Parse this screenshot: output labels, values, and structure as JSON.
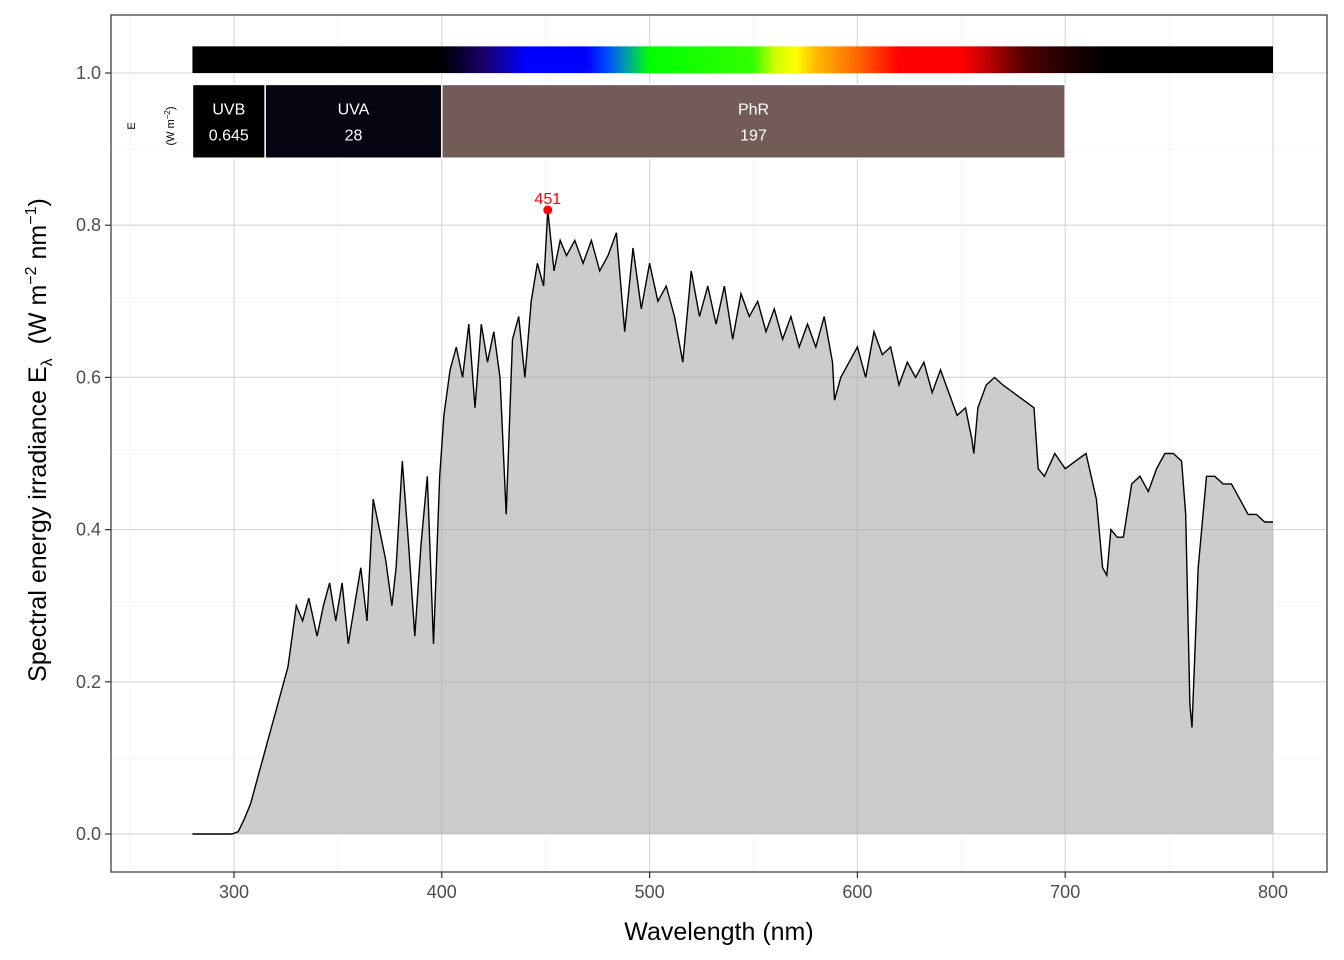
{
  "chart_data": {
    "type": "area",
    "xlabel": "Wavelength (nm)",
    "ylabel": {
      "main": "Spectral  energy  irradiance  E",
      "sub": "λ",
      "units": "(W m",
      "exp1": "−2",
      "mid": " nm",
      "exp2": "−1",
      "close": ")"
    },
    "xlim": [
      242.5,
      1837.5
    ],
    "ylim": [
      -0.052,
      1.068
    ],
    "x_ticks": [
      300,
      400,
      500,
      600,
      700,
      800
    ],
    "x_tick_labels": [
      "300",
      "400",
      "500",
      "600",
      "700",
      "800"
    ],
    "y_ticks": [
      0.0,
      0.2,
      0.4,
      0.6,
      0.8,
      1.0
    ],
    "y_tick_labels": [
      "0.0",
      "0.2",
      "0.4",
      "0.6",
      "0.8",
      "1.0"
    ],
    "grid": true,
    "fill_color": "#cccccc",
    "line_color": "#000000",
    "points": [
      [
        280,
        0.0
      ],
      [
        290,
        0.0
      ],
      [
        299,
        0.0
      ],
      [
        302,
        0.003
      ],
      [
        305,
        0.02
      ],
      [
        308,
        0.04
      ],
      [
        310,
        0.06
      ],
      [
        312,
        0.08
      ],
      [
        314,
        0.1
      ],
      [
        316,
        0.12
      ],
      [
        318,
        0.14
      ],
      [
        320,
        0.16
      ],
      [
        323,
        0.19
      ],
      [
        326,
        0.22
      ],
      [
        328,
        0.26
      ],
      [
        330,
        0.3
      ],
      [
        333,
        0.28
      ],
      [
        336,
        0.31
      ],
      [
        340,
        0.26
      ],
      [
        343,
        0.3
      ],
      [
        346,
        0.33
      ],
      [
        349,
        0.28
      ],
      [
        352,
        0.33
      ],
      [
        355,
        0.25
      ],
      [
        358,
        0.3
      ],
      [
        361,
        0.35
      ],
      [
        364,
        0.28
      ],
      [
        367,
        0.44
      ],
      [
        370,
        0.4
      ],
      [
        373,
        0.36
      ],
      [
        376,
        0.3
      ],
      [
        378,
        0.35
      ],
      [
        381,
        0.49
      ],
      [
        384,
        0.38
      ],
      [
        387,
        0.26
      ],
      [
        390,
        0.38
      ],
      [
        393,
        0.47
      ],
      [
        396,
        0.25
      ],
      [
        399,
        0.47
      ],
      [
        401,
        0.55
      ],
      [
        404,
        0.61
      ],
      [
        407,
        0.64
      ],
      [
        410,
        0.6
      ],
      [
        413,
        0.67
      ],
      [
        416,
        0.56
      ],
      [
        419,
        0.67
      ],
      [
        422,
        0.62
      ],
      [
        425,
        0.66
      ],
      [
        428,
        0.6
      ],
      [
        431,
        0.42
      ],
      [
        434,
        0.65
      ],
      [
        437,
        0.68
      ],
      [
        440,
        0.6
      ],
      [
        443,
        0.7
      ],
      [
        446,
        0.75
      ],
      [
        449,
        0.72
      ],
      [
        451,
        0.82
      ],
      [
        454,
        0.74
      ],
      [
        457,
        0.78
      ],
      [
        460,
        0.76
      ],
      [
        464,
        0.78
      ],
      [
        468,
        0.75
      ],
      [
        472,
        0.78
      ],
      [
        476,
        0.74
      ],
      [
        480,
        0.76
      ],
      [
        484,
        0.79
      ],
      [
        488,
        0.66
      ],
      [
        492,
        0.77
      ],
      [
        496,
        0.69
      ],
      [
        500,
        0.75
      ],
      [
        504,
        0.7
      ],
      [
        508,
        0.72
      ],
      [
        512,
        0.68
      ],
      [
        516,
        0.62
      ],
      [
        520,
        0.74
      ],
      [
        524,
        0.68
      ],
      [
        528,
        0.72
      ],
      [
        532,
        0.67
      ],
      [
        536,
        0.72
      ],
      [
        540,
        0.65
      ],
      [
        544,
        0.71
      ],
      [
        548,
        0.68
      ],
      [
        552,
        0.7
      ],
      [
        556,
        0.66
      ],
      [
        560,
        0.69
      ],
      [
        564,
        0.65
      ],
      [
        568,
        0.68
      ],
      [
        572,
        0.64
      ],
      [
        576,
        0.67
      ],
      [
        580,
        0.64
      ],
      [
        584,
        0.68
      ],
      [
        588,
        0.62
      ],
      [
        589,
        0.57
      ],
      [
        592,
        0.6
      ],
      [
        596,
        0.62
      ],
      [
        600,
        0.64
      ],
      [
        604,
        0.6
      ],
      [
        608,
        0.66
      ],
      [
        612,
        0.63
      ],
      [
        616,
        0.64
      ],
      [
        620,
        0.59
      ],
      [
        624,
        0.62
      ],
      [
        628,
        0.6
      ],
      [
        632,
        0.62
      ],
      [
        636,
        0.58
      ],
      [
        640,
        0.61
      ],
      [
        644,
        0.58
      ],
      [
        648,
        0.55
      ],
      [
        652,
        0.56
      ],
      [
        655,
        0.52
      ],
      [
        656,
        0.5
      ],
      [
        658,
        0.56
      ],
      [
        662,
        0.59
      ],
      [
        666,
        0.6
      ],
      [
        670,
        0.59
      ],
      [
        675,
        0.58
      ],
      [
        680,
        0.57
      ],
      [
        685,
        0.56
      ],
      [
        687,
        0.48
      ],
      [
        690,
        0.47
      ],
      [
        695,
        0.5
      ],
      [
        700,
        0.48
      ],
      [
        705,
        0.49
      ],
      [
        710,
        0.5
      ],
      [
        715,
        0.44
      ],
      [
        718,
        0.35
      ],
      [
        720,
        0.34
      ],
      [
        722,
        0.4
      ],
      [
        725,
        0.39
      ],
      [
        728,
        0.39
      ],
      [
        732,
        0.46
      ],
      [
        736,
        0.47
      ],
      [
        740,
        0.45
      ],
      [
        744,
        0.48
      ],
      [
        748,
        0.5
      ],
      [
        752,
        0.5
      ],
      [
        756,
        0.49
      ],
      [
        758,
        0.42
      ],
      [
        760,
        0.17
      ],
      [
        761,
        0.14
      ],
      [
        764,
        0.35
      ],
      [
        768,
        0.47
      ],
      [
        772,
        0.47
      ],
      [
        776,
        0.46
      ],
      [
        780,
        0.46
      ],
      [
        784,
        0.44
      ],
      [
        788,
        0.42
      ],
      [
        792,
        0.42
      ],
      [
        796,
        0.41
      ],
      [
        800,
        0.41
      ]
    ],
    "peak": {
      "x": 451,
      "y": 0.82,
      "label": "451",
      "color": "#ff0000"
    },
    "spectrum_bar": {
      "y_bottom": 1.0,
      "y_top": 1.035,
      "x_start": 280,
      "x_end": 800,
      "stops": [
        [
          280,
          "#000000"
        ],
        [
          380,
          "#000000"
        ],
        [
          400,
          "#000000"
        ],
        [
          410,
          "#0a0038"
        ],
        [
          420,
          "#1a0066"
        ],
        [
          440,
          "#0000ff"
        ],
        [
          470,
          "#0000ff"
        ],
        [
          480,
          "#0050ff"
        ],
        [
          490,
          "#00aa99"
        ],
        [
          500,
          "#00ff00"
        ],
        [
          550,
          "#33ff00"
        ],
        [
          560,
          "#ccff00"
        ],
        [
          570,
          "#ffff00"
        ],
        [
          580,
          "#ffbb00"
        ],
        [
          600,
          "#ff6600"
        ],
        [
          610,
          "#ff3300"
        ],
        [
          620,
          "#ff0000"
        ],
        [
          650,
          "#ff0000"
        ],
        [
          660,
          "#cc0000"
        ],
        [
          680,
          "#550000"
        ],
        [
          700,
          "#200000"
        ],
        [
          720,
          "#000000"
        ],
        [
          800,
          "#000000"
        ]
      ]
    },
    "bands": [
      {
        "name": "UVB",
        "value": "0.645",
        "x_start": 280,
        "x_end": 315,
        "color": "#000000"
      },
      {
        "name": "UVA",
        "value": "28",
        "x_start": 315,
        "x_end": 400,
        "color": "#050512"
      },
      {
        "name": "PhR",
        "value": "197",
        "x_start": 400,
        "x_end": 700,
        "color": "#735b57"
      }
    ],
    "band_y_top": 0.985,
    "band_y_bottom": 0.888,
    "band_label_small": "E",
    "band_label_units": "(W m",
    "band_label_units_exp": "−2",
    "band_label_units_close": ")"
  }
}
